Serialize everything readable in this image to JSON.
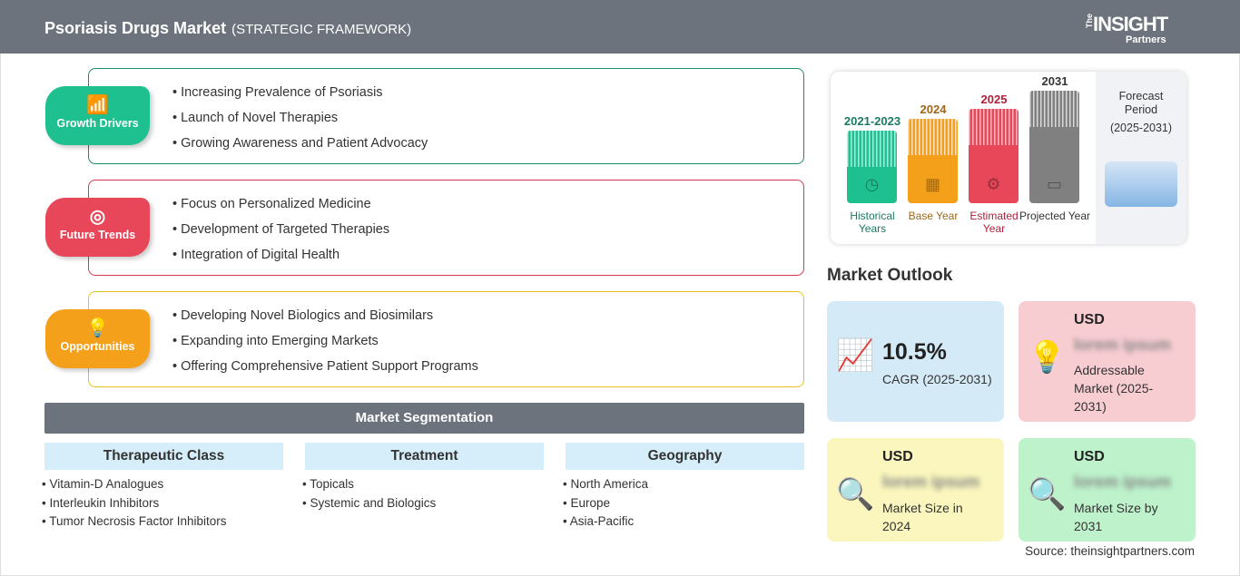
{
  "header": {
    "title": "Psoriasis Drugs Market",
    "subtitle": "(STRATEGIC FRAMEWORK)",
    "logo": {
      "the": "The",
      "insight": "INSIGHT",
      "partners": "Partners"
    }
  },
  "framework": [
    {
      "label": "Growth Drivers",
      "icon": "growth-chart-icon",
      "color": "#1fc08f",
      "border": "#1a8a6a",
      "items": [
        "Increasing Prevalence of Psoriasis",
        "Launch of Novel Therapies",
        "Growing Awareness and Patient Advocacy"
      ]
    },
    {
      "label": "Future Trends",
      "icon": "target-icon",
      "color": "#e8475a",
      "border": "#d43a4e",
      "items": [
        "Focus on Personalized Medicine",
        "Development of Targeted Therapies",
        "Integration of Digital Health"
      ]
    },
    {
      "label": "Opportunities",
      "icon": "lightbulb-hand-icon",
      "color": "#f5a01a",
      "border": "#e8c21a",
      "items": [
        "Developing Novel Biologics and Biosimilars",
        "Expanding into Emerging Markets",
        "Offering Comprehensive Patient Support Programs"
      ]
    }
  ],
  "segmentation": {
    "title": "Market Segmentation",
    "columns": [
      {
        "header": "Therapeutic Class",
        "items": [
          "Vitamin-D Analogues",
          "Interleukin Inhibitors",
          "Tumor Necrosis Factor Inhibitors"
        ]
      },
      {
        "header": "Treatment",
        "items": [
          "Topicals",
          "Systemic and Biologics"
        ]
      },
      {
        "header": "Geography",
        "items": [
          "North America",
          "Europe",
          "Asia-Pacific"
        ]
      }
    ]
  },
  "timeline": {
    "bars": [
      {
        "year": "2021-2023",
        "label": "Historical Years",
        "color": "#1fc08f",
        "text": "#1a7a60",
        "icon": "history-clock-icon"
      },
      {
        "year": "2024",
        "label": "Base Year",
        "color": "#f5a01a",
        "text": "#a0661a",
        "icon": "calendar-icon"
      },
      {
        "year": "2025",
        "label": "Estimated Year",
        "color": "#e8475a",
        "text": "#b0203a",
        "icon": "settings-chart-icon"
      },
      {
        "year": "2031",
        "label": "Projected Year",
        "color": "#808080",
        "text": "#333333",
        "icon": "presentation-icon"
      }
    ],
    "forecast": {
      "title": "Forecast Period",
      "range": "(2025-2031)"
    }
  },
  "outlook": {
    "title": "Market Outlook",
    "cagr": {
      "value": "10.5%",
      "label": "CAGR (2025-2031)"
    },
    "addressable": {
      "currency": "USD",
      "value": "lorem ipsum",
      "label": "Addressable Market (2025-2031)"
    },
    "size2024": {
      "currency": "USD",
      "value": "lorem ipsum",
      "label": "Market Size in 2024"
    },
    "size2031": {
      "currency": "USD",
      "value": "lorem ipsum",
      "label": "Market Size by 2031"
    }
  },
  "source": "Source: theinsightpartners.com"
}
